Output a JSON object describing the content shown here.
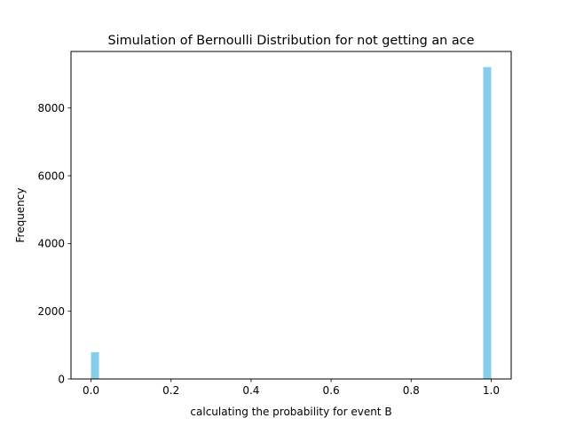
{
  "chart_data": {
    "type": "bar",
    "title": "Simulation of Bernoulli Distribution for not getting an ace",
    "xlabel": "calculating the probability for event B",
    "ylabel": "Frequency",
    "bars": [
      {
        "x_start": 0.0,
        "x_end": 0.02,
        "value": 790
      },
      {
        "x_start": 0.98,
        "x_end": 1.0,
        "value": 9210
      }
    ],
    "xlim": [
      -0.05,
      1.05
    ],
    "ylim": [
      0,
      9670
    ],
    "x_ticks": [
      0.0,
      0.2,
      0.4,
      0.6,
      0.8,
      1.0
    ],
    "x_tick_labels": [
      "0.0",
      "0.2",
      "0.4",
      "0.6",
      "0.8",
      "1.0"
    ],
    "y_ticks": [
      0,
      2000,
      4000,
      6000,
      8000
    ],
    "y_tick_labels": [
      "0",
      "2000",
      "4000",
      "6000",
      "8000"
    ],
    "bar_color": "#87ceeb",
    "grid": false,
    "legend": "none"
  }
}
